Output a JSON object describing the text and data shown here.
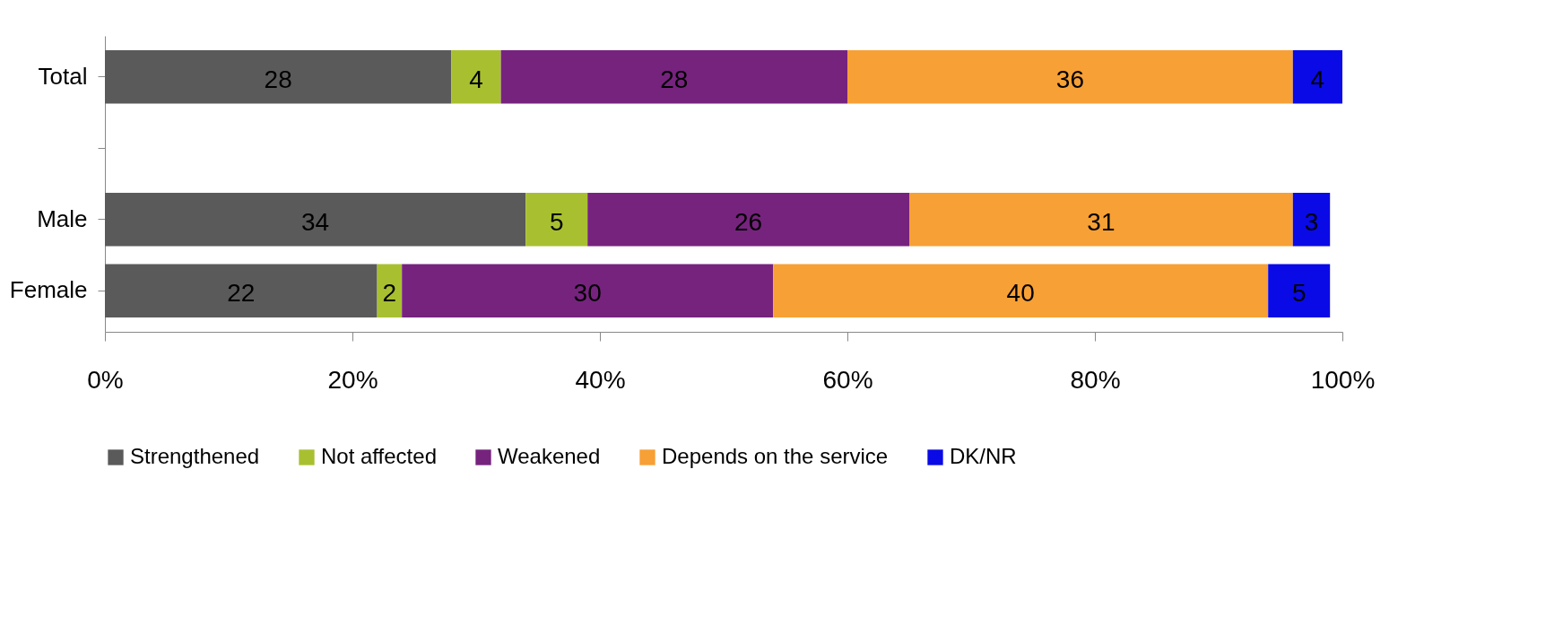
{
  "chart_data": {
    "type": "bar",
    "orientation": "horizontal",
    "stacked": true,
    "data_labels": true,
    "grid": false,
    "legend": "bottom",
    "categories": [
      "Total",
      null,
      "Male",
      "Female"
    ],
    "xlim": [
      0,
      100
    ],
    "xticks": [
      {
        "value": 0,
        "label": "0%"
      },
      {
        "value": 20,
        "label": "20%"
      },
      {
        "value": 40,
        "label": "40%"
      },
      {
        "value": 60,
        "label": "60%"
      },
      {
        "value": 80,
        "label": "80%"
      },
      {
        "value": 100,
        "label": "100%"
      }
    ],
    "series": [
      {
        "name": "Strengthened",
        "color": "#5a5a5a",
        "values": [
          28,
          null,
          34,
          22
        ]
      },
      {
        "name": "Not affected",
        "color": "#a8c030",
        "values": [
          4,
          null,
          5,
          2
        ]
      },
      {
        "name": "Weakened",
        "color": "#76237e",
        "values": [
          28,
          null,
          26,
          30
        ]
      },
      {
        "name": "Depends on the service",
        "color": "#f7a035",
        "values": [
          36,
          null,
          31,
          40
        ]
      },
      {
        "name": "DK/NR",
        "color": "#0a0ae6",
        "values": [
          4,
          null,
          3,
          5
        ]
      }
    ]
  }
}
